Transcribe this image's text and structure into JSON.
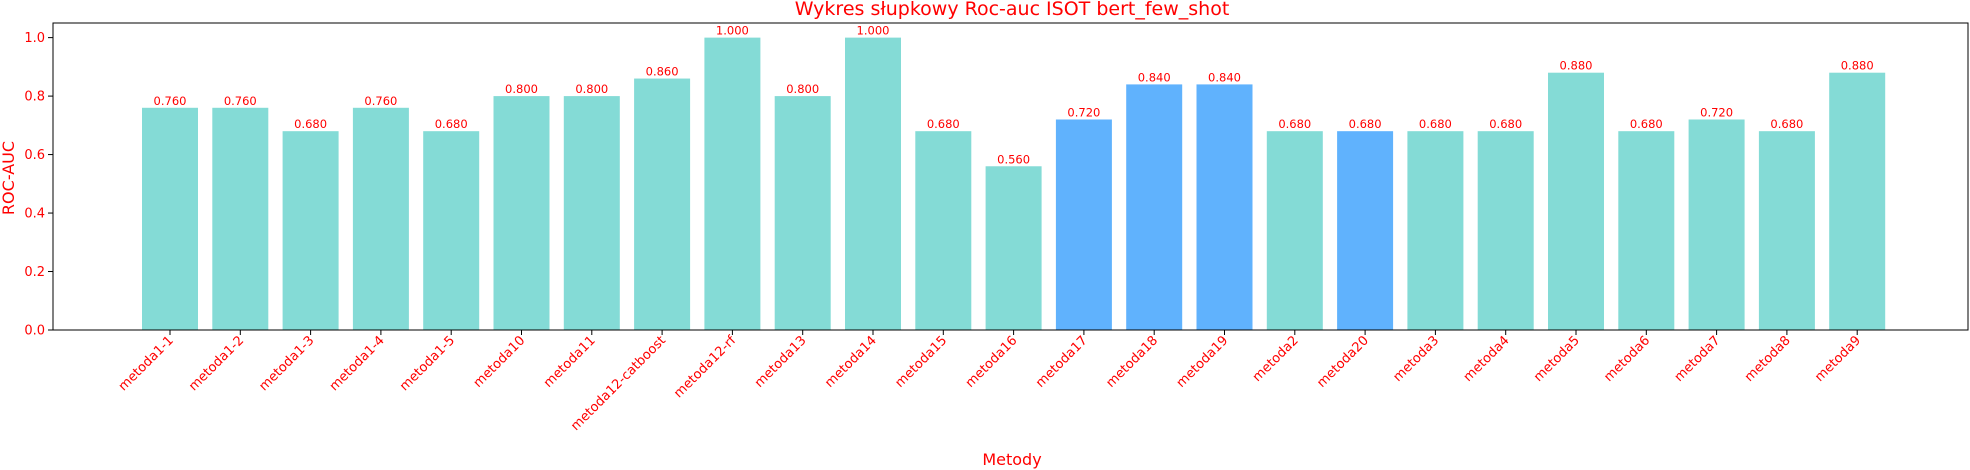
{
  "chart_data": {
    "type": "bar",
    "title": "Wykres słupkowy Roc-auc ISOT bert_few_shot",
    "xlabel": "Metody",
    "ylabel": "ROC-AUC",
    "ylim": [
      0,
      1.05
    ],
    "yticks": [
      0.0,
      0.2,
      0.4,
      0.6,
      0.8,
      1.0
    ],
    "ytick_labels": [
      "0.0",
      "0.2",
      "0.4",
      "0.6",
      "0.8",
      "1.0"
    ],
    "grid": false,
    "categories": [
      "metoda1-1",
      "metoda1-2",
      "metoda1-3",
      "metoda1-4",
      "metoda1-5",
      "metoda10",
      "metoda11",
      "metoda12-catboost",
      "metoda12-rf",
      "metoda13",
      "metoda14",
      "metoda15",
      "metoda16",
      "metoda17",
      "metoda18",
      "metoda19",
      "metoda2",
      "metoda20",
      "metoda3",
      "metoda4",
      "metoda5",
      "metoda6",
      "metoda7",
      "metoda8",
      "metoda9"
    ],
    "values": [
      0.76,
      0.76,
      0.68,
      0.76,
      0.68,
      0.8,
      0.8,
      0.86,
      1.0,
      0.8,
      1.0,
      0.68,
      0.56,
      0.72,
      0.84,
      0.84,
      0.68,
      0.68,
      0.68,
      0.68,
      0.88,
      0.68,
      0.72,
      0.68,
      0.88
    ],
    "value_labels": [
      "0.760",
      "0.760",
      "0.680",
      "0.760",
      "0.680",
      "0.800",
      "0.800",
      "0.860",
      "1.000",
      "0.800",
      "1.000",
      "0.680",
      "0.560",
      "0.720",
      "0.840",
      "0.840",
      "0.680",
      "0.680",
      "0.680",
      "0.680",
      "0.880",
      "0.680",
      "0.720",
      "0.680",
      "0.880"
    ],
    "bar_colors": [
      "#84dbd6",
      "#84dbd6",
      "#84dbd6",
      "#84dbd6",
      "#84dbd6",
      "#84dbd6",
      "#84dbd6",
      "#84dbd6",
      "#84dbd6",
      "#84dbd6",
      "#84dbd6",
      "#84dbd6",
      "#84dbd6",
      "#60b2fd",
      "#60b2fd",
      "#60b2fd",
      "#84dbd6",
      "#60b2fd",
      "#84dbd6",
      "#84dbd6",
      "#84dbd6",
      "#84dbd6",
      "#84dbd6",
      "#84dbd6",
      "#84dbd6"
    ],
    "text_color": "#ff0000"
  }
}
